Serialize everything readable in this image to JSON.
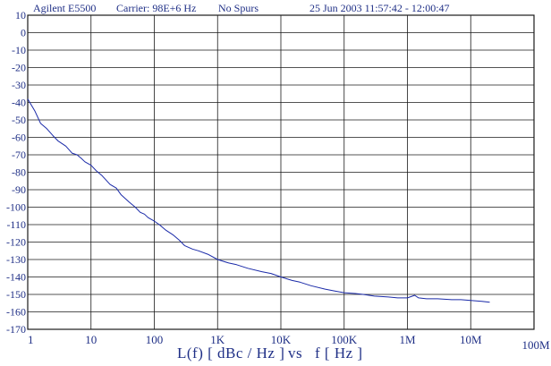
{
  "header": {
    "instrument": "Agilent E5500",
    "carrier": "Carrier: 98E+6 Hz",
    "spurs": "No Spurs",
    "timestamp": "25 Jun 2003  11:57:42 - 12:00:47"
  },
  "axis_label": {
    "y": "L(f)  [ dBc / Hz ]",
    "vs": "vs",
    "x": "f  [ Hz ]"
  },
  "colors": {
    "trace": "#1a2aa8",
    "text": "#1f2f86",
    "grid": "#1a1a1a"
  },
  "chart_data": {
    "type": "line",
    "title": "",
    "xlabel": "f  [ Hz ]",
    "ylabel": "L(f)  [ dBc / Hz ]",
    "x_scale": "log",
    "xlim": [
      1,
      100000000
    ],
    "ylim": [
      -170,
      10
    ],
    "x_ticks": [
      1,
      10,
      100,
      1000,
      10000,
      100000,
      1000000,
      10000000,
      100000000
    ],
    "x_tick_labels": [
      "1",
      "10",
      "100",
      "1K",
      "10K",
      "100K",
      "1M",
      "10M",
      "100M"
    ],
    "y_ticks": [
      10,
      0,
      -10,
      -20,
      -30,
      -40,
      -50,
      -60,
      -70,
      -80,
      -90,
      -100,
      -110,
      -120,
      -130,
      -140,
      -150,
      -160,
      -170
    ],
    "y_tick_labels": [
      "10",
      "0",
      "-10",
      "-20",
      "-30",
      "-40",
      "-50",
      "-60",
      "-70",
      "-80",
      "-90",
      "-100",
      "-110",
      "-120",
      "-130",
      "-140",
      "-150",
      "-160",
      "-170"
    ],
    "grid": true,
    "legend": "none",
    "series": [
      {
        "x": [
          1,
          1.3,
          1.6,
          2,
          2.5,
          3,
          4,
          5,
          6,
          7,
          8,
          10,
          12,
          15,
          20,
          25,
          30,
          40,
          50,
          60,
          70,
          80,
          100,
          120,
          150,
          200,
          250,
          300,
          400,
          500,
          700,
          1000,
          1500,
          2000,
          3000,
          5000,
          7000,
          10000,
          15000,
          20000,
          30000,
          50000,
          70000,
          100000,
          150000,
          200000,
          300000,
          500000,
          700000,
          1000000,
          1200000,
          1300000,
          1500000,
          2000000,
          3000000,
          5000000,
          7000000,
          10000000,
          15000000,
          20000000
        ],
        "y": [
          -38,
          -45,
          -52,
          -55,
          -59,
          -62,
          -65,
          -69,
          -70,
          -72,
          -74,
          -76,
          -79,
          -82,
          -87,
          -89,
          -93,
          -97,
          -100,
          -103,
          -104,
          -106,
          -108,
          -110,
          -113,
          -116,
          -119,
          -122,
          -124,
          -125,
          -127,
          -130,
          -132,
          -133,
          -135,
          -137,
          -138,
          -140,
          -142,
          -143,
          -145,
          -147,
          -148,
          -149,
          -149.5,
          -150,
          -151,
          -151.5,
          -152,
          -152,
          -151,
          -150.5,
          -152,
          -152.5,
          -152.5,
          -153,
          -153,
          -153.5,
          -154,
          -154.5
        ]
      }
    ]
  }
}
